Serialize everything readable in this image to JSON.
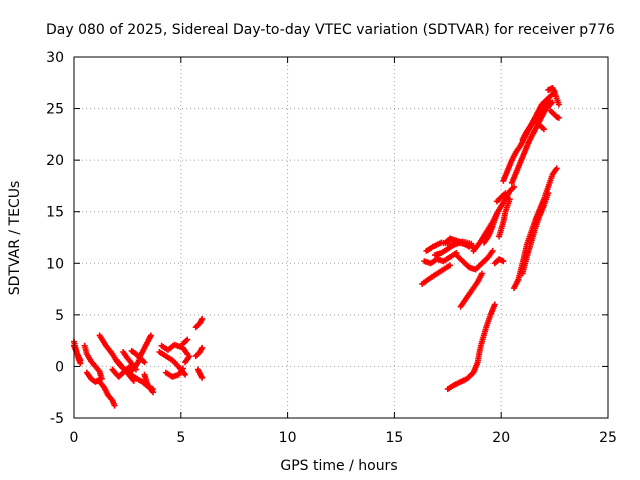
{
  "chart_data": {
    "type": "scatter",
    "title": "Day 080 of 2025, Sidereal Day-to-day VTEC variation (SDTVAR) for receiver p776",
    "xlabel": "GPS time / hours",
    "ylabel": "SDTVAR / TECUs",
    "xlim": [
      0,
      25
    ],
    "ylim": [
      -5,
      30
    ],
    "xticks": [
      0,
      5,
      10,
      15,
      20,
      25
    ],
    "yticks": [
      -5,
      0,
      5,
      10,
      15,
      20,
      25,
      30
    ],
    "xtick_labels": [
      "0",
      "5",
      "10",
      "15",
      "20",
      "25"
    ],
    "ytick_labels": [
      "-5",
      "0",
      "5",
      "10",
      "15",
      "20",
      "25",
      "30"
    ],
    "grid": true,
    "legend": "none",
    "marker": "+",
    "color": "#ff0000",
    "series": [
      {
        "tracks": [
          [
            [
              0.0,
              2.4
            ],
            [
              0.1,
              1.6
            ],
            [
              0.2,
              0.8
            ],
            [
              0.3,
              0.3
            ]
          ],
          [
            [
              0.0,
              2.0
            ],
            [
              0.15,
              1.2
            ],
            [
              0.3,
              0.6
            ]
          ],
          [
            [
              0.5,
              2.0
            ],
            [
              0.6,
              1.2
            ],
            [
              0.8,
              0.5
            ],
            [
              1.0,
              0.0
            ],
            [
              1.2,
              -0.5
            ],
            [
              1.3,
              -1.2
            ]
          ],
          [
            [
              0.6,
              -0.6
            ],
            [
              0.8,
              -1.2
            ],
            [
              1.0,
              -1.5
            ],
            [
              1.2,
              -1.3
            ]
          ],
          [
            [
              1.2,
              3.0
            ],
            [
              1.5,
              2.0
            ],
            [
              1.8,
              1.2
            ],
            [
              2.0,
              0.5
            ],
            [
              2.2,
              0.0
            ],
            [
              2.5,
              -0.5
            ],
            [
              2.8,
              -1.0
            ],
            [
              3.2,
              -1.5
            ],
            [
              3.5,
              -2.0
            ],
            [
              3.7,
              -2.5
            ]
          ],
          [
            [
              1.2,
              -1.5
            ],
            [
              1.4,
              -2.0
            ],
            [
              1.6,
              -2.8
            ],
            [
              1.8,
              -3.3
            ],
            [
              1.9,
              -3.8
            ]
          ],
          [
            [
              1.8,
              -0.3
            ],
            [
              2.0,
              -0.8
            ],
            [
              2.1,
              -1.0
            ],
            [
              2.3,
              -0.6
            ],
            [
              2.5,
              -0.2
            ],
            [
              2.7,
              0.1
            ]
          ],
          [
            [
              2.0,
              0.6
            ],
            [
              2.2,
              0.1
            ],
            [
              2.4,
              -0.4
            ],
            [
              2.6,
              -0.9
            ],
            [
              2.8,
              -1.4
            ]
          ],
          [
            [
              2.3,
              1.4
            ],
            [
              2.5,
              0.8
            ],
            [
              2.7,
              0.3
            ],
            [
              2.9,
              -0.3
            ]
          ],
          [
            [
              2.6,
              -0.6
            ],
            [
              2.8,
              -0.2
            ],
            [
              3.0,
              0.4
            ],
            [
              3.1,
              1.0
            ],
            [
              3.3,
              1.8
            ],
            [
              3.5,
              2.6
            ],
            [
              3.6,
              3.0
            ]
          ],
          [
            [
              3.3,
              -0.8
            ],
            [
              3.4,
              -1.5
            ],
            [
              3.5,
              -2.0
            ],
            [
              3.7,
              -2.2
            ]
          ],
          [
            [
              2.7,
              1.5
            ],
            [
              2.9,
              1.2
            ],
            [
              3.1,
              0.8
            ],
            [
              3.3,
              0.4
            ]
          ],
          [
            [
              4.0,
              1.4
            ],
            [
              4.3,
              1.0
            ],
            [
              4.6,
              0.6
            ],
            [
              4.8,
              0.2
            ],
            [
              5.0,
              -0.3
            ],
            [
              5.2,
              -0.8
            ]
          ],
          [
            [
              4.1,
              2.0
            ],
            [
              4.4,
              1.6
            ],
            [
              4.7,
              2.1
            ],
            [
              5.1,
              1.8
            ],
            [
              5.3,
              1.2
            ]
          ],
          [
            [
              4.3,
              -0.6
            ],
            [
              4.6,
              -1.0
            ],
            [
              4.9,
              -0.8
            ],
            [
              5.1,
              -0.2
            ]
          ],
          [
            [
              5.1,
              2.2
            ],
            [
              5.3,
              2.6
            ]
          ],
          [
            [
              5.2,
              0.4
            ],
            [
              5.4,
              1.0
            ]
          ],
          [
            [
              5.7,
              1.0
            ],
            [
              5.9,
              1.4
            ],
            [
              6.0,
              1.8
            ]
          ],
          [
            [
              5.7,
              3.8
            ],
            [
              5.9,
              4.2
            ],
            [
              6.0,
              4.6
            ]
          ],
          [
            [
              5.8,
              -0.3
            ],
            [
              5.9,
              -0.7
            ],
            [
              6.0,
              -1.1
            ]
          ],
          [
            [
              16.3,
              8.0
            ],
            [
              16.7,
              8.6
            ],
            [
              17.0,
              9.0
            ],
            [
              17.3,
              9.4
            ],
            [
              17.6,
              9.8
            ]
          ],
          [
            [
              16.4,
              10.2
            ],
            [
              16.7,
              10.0
            ],
            [
              17.0,
              10.4
            ],
            [
              17.3,
              10.2
            ],
            [
              17.6,
              10.6
            ],
            [
              17.9,
              11.0
            ]
          ],
          [
            [
              16.5,
              11.2
            ],
            [
              16.8,
              11.6
            ],
            [
              17.2,
              12.0
            ],
            [
              17.6,
              11.9
            ],
            [
              18.0,
              12.0
            ],
            [
              18.4,
              11.8
            ],
            [
              18.7,
              11.6
            ]
          ],
          [
            [
              16.9,
              10.8
            ],
            [
              17.2,
              11.0
            ],
            [
              17.5,
              11.4
            ],
            [
              17.8,
              11.8
            ],
            [
              18.2,
              12.1
            ],
            [
              18.6,
              11.9
            ]
          ],
          [
            [
              17.9,
              10.8
            ],
            [
              18.2,
              10.2
            ],
            [
              18.5,
              9.6
            ],
            [
              18.8,
              9.4
            ],
            [
              19.0,
              9.8
            ],
            [
              19.2,
              10.2
            ],
            [
              19.4,
              10.6
            ],
            [
              19.6,
              11.2
            ]
          ],
          [
            [
              18.7,
              11.2
            ],
            [
              19.0,
              12.0
            ],
            [
              19.3,
              13.0
            ],
            [
              19.6,
              14.0
            ],
            [
              19.9,
              15.2
            ],
            [
              20.2,
              16.2
            ],
            [
              20.4,
              17.0
            ],
            [
              20.6,
              17.4
            ]
          ],
          [
            [
              19.2,
              12.0
            ],
            [
              19.4,
              12.6
            ],
            [
              19.6,
              13.6
            ],
            [
              19.8,
              14.8
            ]
          ],
          [
            [
              17.5,
              -2.2
            ],
            [
              17.8,
              -1.8
            ],
            [
              18.1,
              -1.5
            ],
            [
              18.4,
              -1.2
            ],
            [
              18.7,
              -0.6
            ],
            [
              18.9,
              0.4
            ],
            [
              19.0,
              1.6
            ],
            [
              19.1,
              2.4
            ],
            [
              19.3,
              3.8
            ],
            [
              19.5,
              5.0
            ],
            [
              19.7,
              6.0
            ]
          ],
          [
            [
              18.1,
              5.8
            ],
            [
              18.3,
              6.4
            ],
            [
              18.5,
              7.0
            ],
            [
              18.7,
              7.6
            ],
            [
              18.9,
              8.2
            ],
            [
              19.1,
              9.0
            ]
          ],
          [
            [
              19.7,
              10.0
            ],
            [
              19.9,
              10.4
            ],
            [
              20.1,
              10.2
            ]
          ],
          [
            [
              19.9,
              12.6
            ],
            [
              20.1,
              14.0
            ],
            [
              20.2,
              15.0
            ],
            [
              20.4,
              16.2
            ]
          ],
          [
            [
              19.8,
              16.0
            ],
            [
              20.0,
              16.4
            ],
            [
              20.2,
              16.8
            ]
          ],
          [
            [
              20.1,
              18.0
            ],
            [
              20.3,
              19.0
            ],
            [
              20.5,
              20.0
            ],
            [
              20.7,
              20.8
            ],
            [
              20.9,
              21.4
            ],
            [
              21.1,
              22.2
            ],
            [
              21.3,
              23.0
            ],
            [
              21.5,
              23.8
            ],
            [
              21.7,
              24.6
            ],
            [
              21.9,
              25.4
            ],
            [
              22.1,
              25.8
            ],
            [
              22.3,
              26.2
            ],
            [
              22.5,
              26.6
            ]
          ],
          [
            [
              20.5,
              17.8
            ],
            [
              20.7,
              18.8
            ],
            [
              20.9,
              19.8
            ],
            [
              21.1,
              20.8
            ],
            [
              21.3,
              21.8
            ],
            [
              21.5,
              22.6
            ],
            [
              21.7,
              23.4
            ],
            [
              21.9,
              24.2
            ],
            [
              22.1,
              25.0
            ],
            [
              22.4,
              25.6
            ]
          ],
          [
            [
              21.0,
              22.0
            ],
            [
              21.2,
              22.8
            ],
            [
              21.4,
              23.4
            ],
            [
              21.6,
              24.0
            ],
            [
              21.8,
              24.6
            ],
            [
              22.0,
              25.2
            ],
            [
              22.3,
              25.6
            ]
          ],
          [
            [
              21.6,
              23.8
            ],
            [
              21.8,
              23.4
            ],
            [
              22.0,
              23.0
            ]
          ],
          [
            [
              22.2,
              26.8
            ],
            [
              22.4,
              27.0
            ],
            [
              22.5,
              26.6
            ],
            [
              22.6,
              26.0
            ],
            [
              22.7,
              25.4
            ]
          ],
          [
            [
              22.3,
              24.8
            ],
            [
              22.5,
              24.4
            ],
            [
              22.6,
              24.2
            ],
            [
              22.7,
              24.1
            ]
          ],
          [
            [
              20.6,
              7.6
            ],
            [
              20.8,
              8.4
            ],
            [
              21.0,
              10.0
            ],
            [
              21.2,
              11.8
            ],
            [
              21.4,
              13.0
            ],
            [
              21.6,
              14.2
            ],
            [
              21.8,
              15.2
            ],
            [
              22.0,
              16.2
            ],
            [
              22.2,
              17.4
            ],
            [
              22.4,
              18.6
            ],
            [
              22.6,
              19.2
            ]
          ],
          [
            [
              21.0,
              9.0
            ],
            [
              21.2,
              10.6
            ],
            [
              21.4,
              12.0
            ],
            [
              21.6,
              13.4
            ],
            [
              21.8,
              14.6
            ],
            [
              22.0,
              15.6
            ],
            [
              22.2,
              16.8
            ]
          ],
          [
            [
              17.4,
              12.0
            ],
            [
              17.6,
              12.4
            ],
            [
              17.9,
              12.2
            ],
            [
              18.2,
              12.0
            ],
            [
              18.5,
              11.6
            ]
          ]
        ]
      }
    ]
  }
}
